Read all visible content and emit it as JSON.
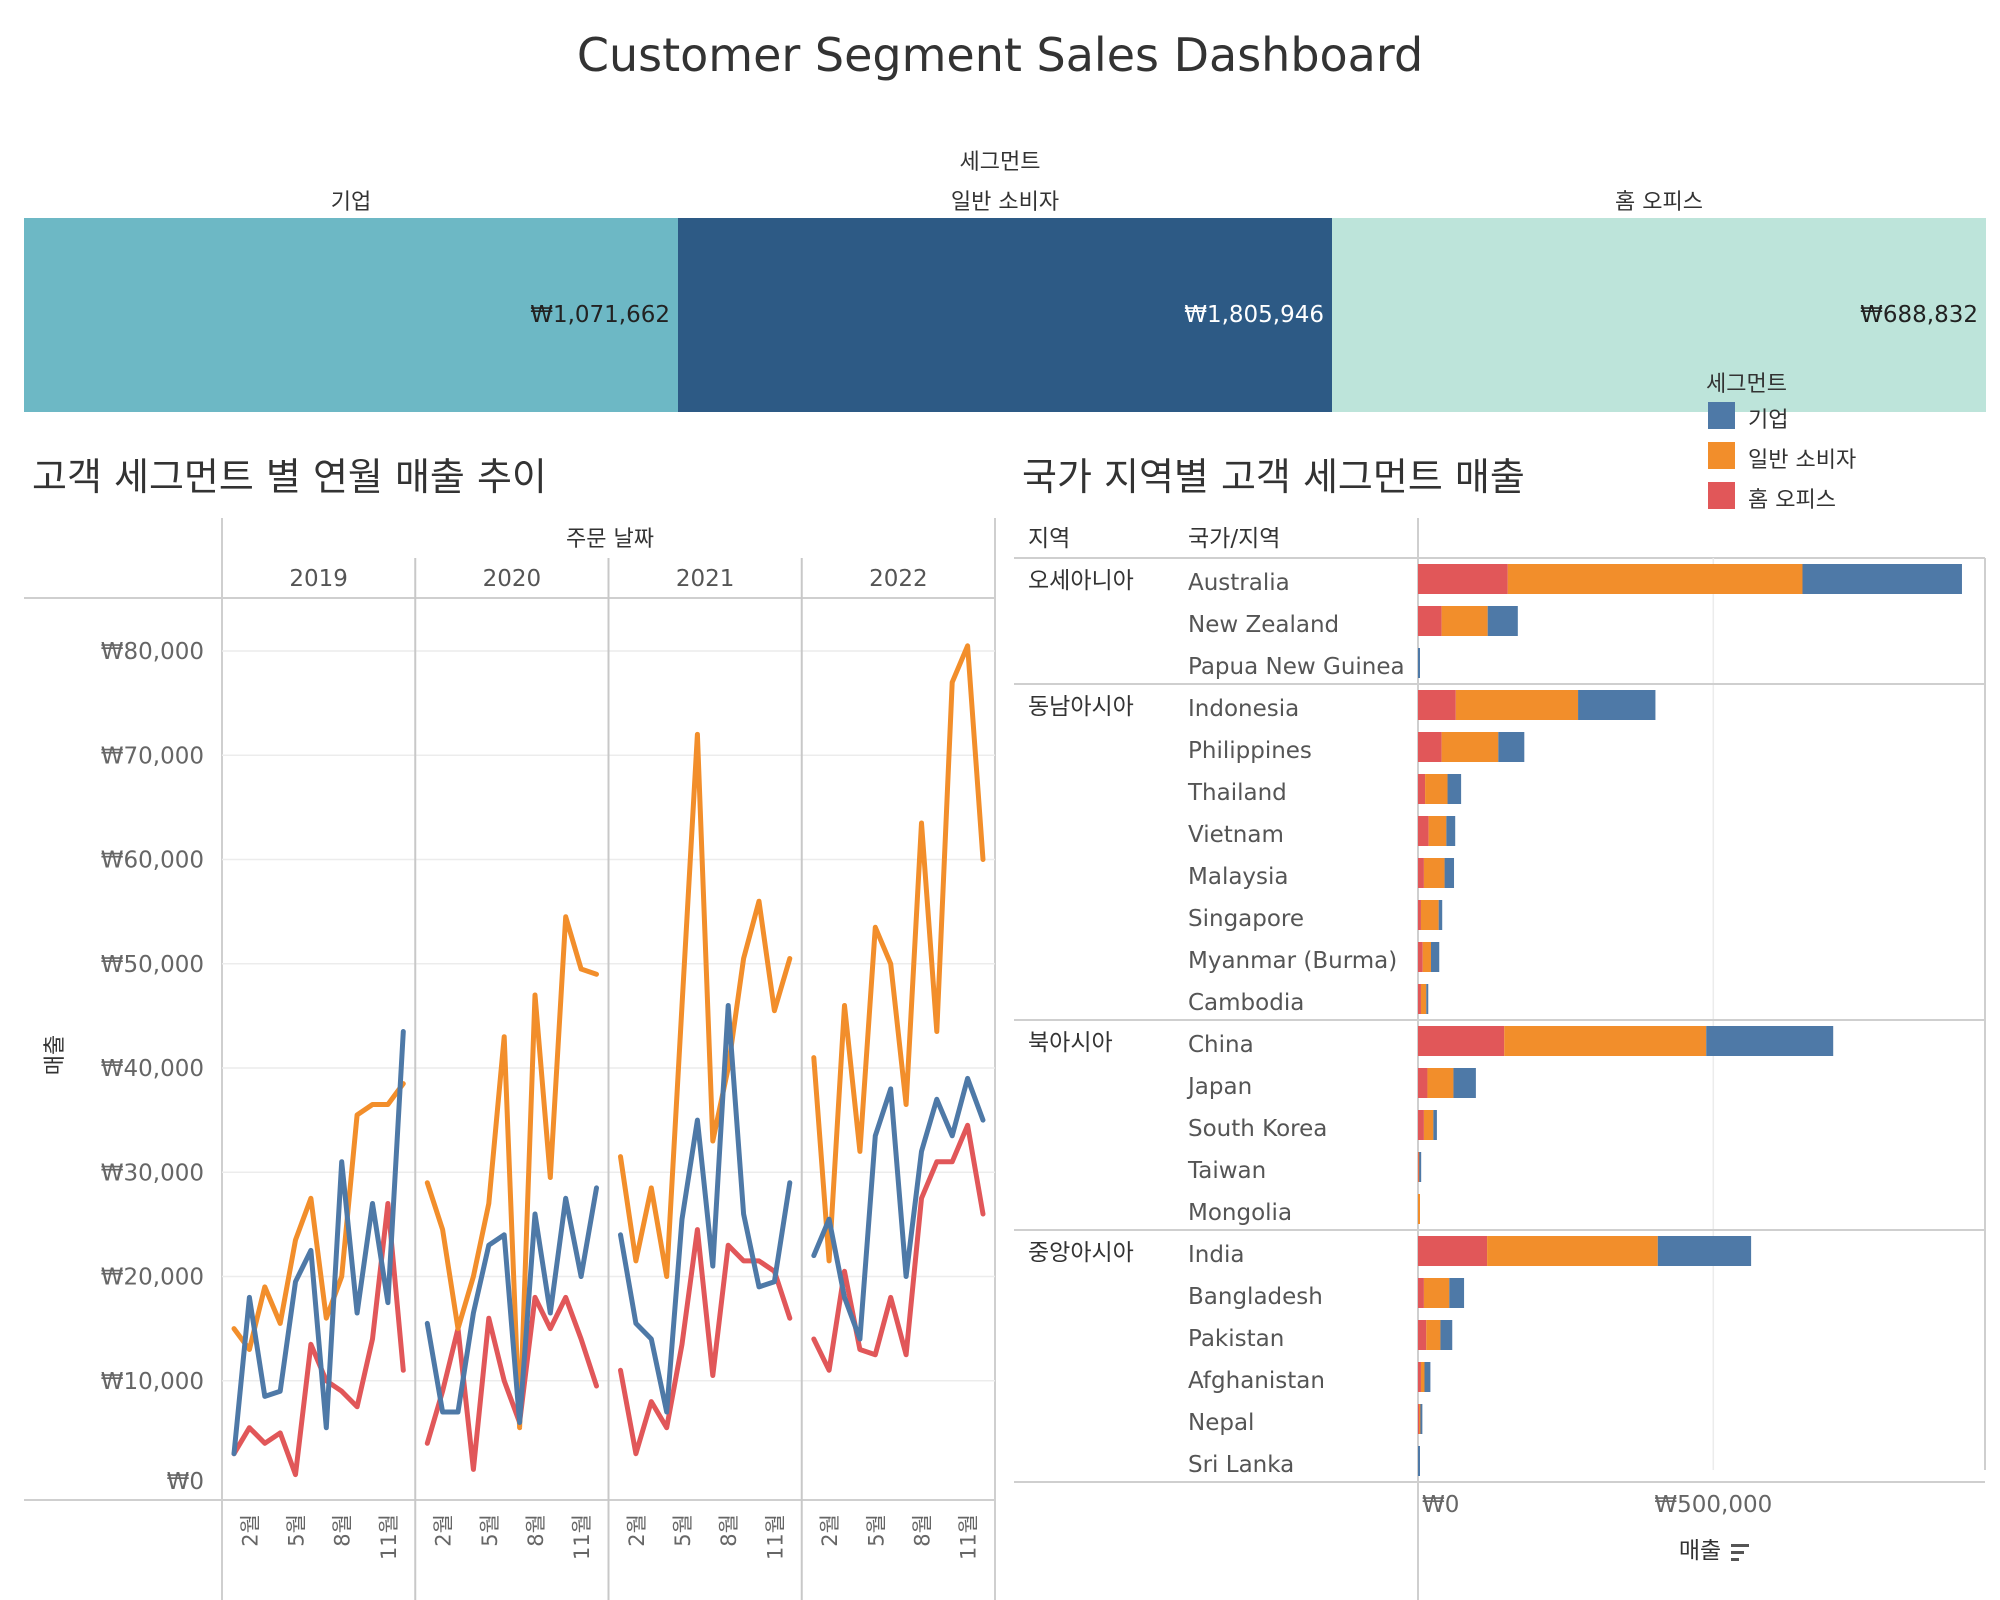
{
  "title": "Customer Segment Sales Dashboard",
  "segments": {
    "header": "세그먼트",
    "items": [
      {
        "label": "기업",
        "value": "₩1,071,662",
        "color": "#6db8c5",
        "text_color": "#222222"
      },
      {
        "label": "일반 소비자",
        "value": "₩1,805,946",
        "color": "#2d5a85",
        "text_color": "#ffffff"
      },
      {
        "label": "홈 오피스",
        "value": "₩688,832",
        "color": "#bde4da",
        "text_color": "#222222"
      }
    ]
  },
  "legend": {
    "title": "세그먼트",
    "items": [
      {
        "label": "기업",
        "color": "#4e79a7"
      },
      {
        "label": "일반 소비자",
        "color": "#f28e2b"
      },
      {
        "label": "홈 오피스",
        "color": "#e15759"
      }
    ]
  },
  "line_panel": {
    "title": "고객 세그먼트 별 연월 매출 추이",
    "column_header": "주문 날짜",
    "ylabel": "매출",
    "years": [
      "2019",
      "2020",
      "2021",
      "2022"
    ],
    "month_ticks": [
      "2월",
      "5월",
      "8월",
      "11월"
    ],
    "yticks": [
      "₩80,000",
      "₩70,000",
      "₩60,000",
      "₩50,000",
      "₩40,000",
      "₩30,000",
      "₩20,000",
      "₩10,000",
      "₩0"
    ]
  },
  "bar_panel": {
    "title": "국가 지역별 고객 세그먼트 매출",
    "col_region": "지역",
    "col_country": "국가/지역",
    "xlabel": "매출",
    "xticks": [
      "₩0",
      "₩500,000"
    ]
  },
  "chart_data": [
    {
      "type": "line",
      "title": "고객 세그먼트 별 연월 매출 추이",
      "xlabel": "주문 날짜",
      "ylabel": "매출",
      "ylim": [
        0,
        85000
      ],
      "x": [
        "2019-01",
        "2019-02",
        "2019-03",
        "2019-04",
        "2019-05",
        "2019-06",
        "2019-07",
        "2019-08",
        "2019-09",
        "2019-10",
        "2019-11",
        "2019-12",
        "2020-01",
        "2020-02",
        "2020-03",
        "2020-04",
        "2020-05",
        "2020-06",
        "2020-07",
        "2020-08",
        "2020-09",
        "2020-10",
        "2020-11",
        "2020-12",
        "2021-01",
        "2021-02",
        "2021-03",
        "2021-04",
        "2021-05",
        "2021-06",
        "2021-07",
        "2021-08",
        "2021-09",
        "2021-10",
        "2021-11",
        "2021-12",
        "2022-01",
        "2022-02",
        "2022-03",
        "2022-04",
        "2022-05",
        "2022-06",
        "2022-07",
        "2022-08",
        "2022-09",
        "2022-10",
        "2022-11",
        "2022-12"
      ],
      "series": [
        {
          "name": "기업",
          "color": "#4e79a7",
          "values": [
            3000,
            18000,
            8500,
            9000,
            19500,
            22500,
            5500,
            31000,
            16500,
            27000,
            17500,
            43500,
            15500,
            7000,
            7000,
            16500,
            23000,
            24000,
            6000,
            26000,
            16500,
            27500,
            20000,
            28500,
            24000,
            15500,
            14000,
            7000,
            25500,
            35000,
            21000,
            46000,
            26000,
            19000,
            19500,
            29000,
            22000,
            25500,
            18000,
            14000,
            33500,
            38000,
            20000,
            32000,
            37000,
            33500,
            39000,
            35000
          ]
        },
        {
          "name": "일반 소비자",
          "color": "#f28e2b",
          "values": [
            15000,
            13000,
            19000,
            15500,
            23500,
            27500,
            16000,
            20000,
            35500,
            36500,
            36500,
            38500,
            29000,
            24500,
            15000,
            20000,
            27000,
            43000,
            5500,
            47000,
            29500,
            54500,
            49500,
            49000,
            31500,
            21500,
            28500,
            20000,
            46000,
            72000,
            33000,
            40000,
            50500,
            56000,
            45500,
            50500,
            41000,
            21500,
            46000,
            32000,
            53500,
            50000,
            36500,
            63500,
            43500,
            77000,
            80500,
            60000
          ]
        },
        {
          "name": "홈 오피스",
          "color": "#e15759",
          "values": [
            3000,
            5500,
            4000,
            5000,
            1000,
            13500,
            10000,
            9000,
            7500,
            14000,
            27000,
            11000,
            4000,
            9000,
            15000,
            1500,
            16000,
            10000,
            6000,
            18000,
            15000,
            18000,
            14000,
            9500,
            11000,
            3000,
            8000,
            5500,
            13500,
            24500,
            10500,
            23000,
            21500,
            21500,
            20500,
            16000,
            14000,
            11000,
            20500,
            13000,
            12500,
            18000,
            12500,
            27500,
            31000,
            31000,
            34500,
            26000
          ]
        }
      ]
    },
    {
      "type": "bar",
      "stacked": true,
      "orientation": "horizontal",
      "title": "국가 지역별 고객 세그먼트 매출",
      "xlabel": "매출",
      "xlim": [
        0,
        960000
      ],
      "groups": [
        {
          "region": "오세아니아",
          "countries": [
            "Australia",
            "New Zealand",
            "Papua New Guinea"
          ]
        },
        {
          "region": "동남아시아",
          "countries": [
            "Indonesia",
            "Philippines",
            "Thailand",
            "Vietnam",
            "Malaysia",
            "Singapore",
            "Myanmar (Burma)",
            "Cambodia"
          ]
        },
        {
          "region": "북아시아",
          "countries": [
            "China",
            "Japan",
            "South Korea",
            "Taiwan",
            "Mongolia"
          ]
        },
        {
          "region": "중앙아시아",
          "countries": [
            "India",
            "Bangladesh",
            "Pakistan",
            "Afghanistan",
            "Nepal",
            "Sri Lanka"
          ]
        }
      ],
      "series": [
        {
          "name": "홈 오피스",
          "color": "#e15759",
          "values": [
            152000,
            40000,
            0,
            64000,
            40000,
            12000,
            18000,
            10000,
            5000,
            8000,
            5000,
            146000,
            16000,
            10000,
            1000,
            0,
            117000,
            10000,
            14000,
            5000,
            2000,
            0
          ]
        },
        {
          "name": "일반 소비자",
          "color": "#f28e2b",
          "values": [
            499000,
            78000,
            0,
            207000,
            96000,
            38000,
            30000,
            35000,
            30000,
            14000,
            9000,
            342000,
            44000,
            16000,
            1000,
            2000,
            289000,
            43000,
            24000,
            6000,
            2000,
            0
          ]
        },
        {
          "name": "기업",
          "color": "#4e79a7",
          "values": [
            270000,
            51000,
            2000,
            131000,
            44000,
            23000,
            15000,
            16000,
            6000,
            14000,
            3000,
            215000,
            38000,
            6000,
            3000,
            0,
            158000,
            25000,
            20000,
            10000,
            2000,
            1000
          ]
        }
      ]
    }
  ]
}
